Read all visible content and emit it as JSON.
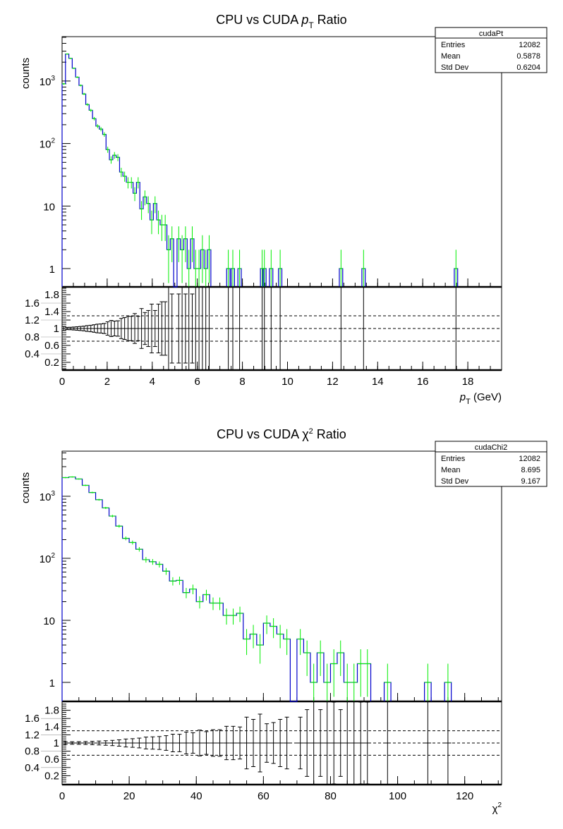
{
  "chart_data": [
    {
      "type": "bar",
      "title": {
        "prefix": "CPU vs CUDA",
        "symbol": "p",
        "sub": "T",
        "sup": "",
        "suffix": "Ratio"
      },
      "xlabel": {
        "symbol": "p",
        "sub": "T",
        "sup": "",
        "suffix": "(GeV)"
      },
      "ylabel": "counts",
      "y_scale": "log",
      "xlim": [
        0,
        19.5
      ],
      "ylim": [
        0.5,
        5000
      ],
      "x_ticks": [
        "0",
        "2",
        "4",
        "6",
        "8",
        "10",
        "12",
        "14",
        "16",
        "18"
      ],
      "y_ticks": [
        {
          "base": "1",
          "exp": ""
        },
        {
          "base": "10",
          "exp": ""
        },
        {
          "base": "10",
          "exp": "2"
        },
        {
          "base": "10",
          "exp": "3"
        }
      ],
      "bin_width": 0.15,
      "counts": [
        900,
        2700,
        2300,
        1600,
        1150,
        850,
        620,
        420,
        340,
        250,
        190,
        170,
        140,
        80,
        55,
        65,
        60,
        35,
        30,
        24,
        24,
        16,
        24,
        9,
        14,
        11,
        6,
        11,
        6,
        5,
        5,
        2,
        3,
        0,
        3,
        2,
        3,
        1,
        3,
        1,
        1,
        2,
        1,
        2
      ],
      "isolated_bins": [
        [
          7.3,
          1
        ],
        [
          7.5,
          1
        ],
        [
          7.8,
          1
        ],
        [
          8.8,
          1
        ],
        [
          8.9,
          1
        ],
        [
          9.2,
          1
        ],
        [
          9.6,
          1
        ],
        [
          12.3,
          1
        ],
        [
          13.3,
          1
        ],
        [
          17.4,
          1
        ]
      ],
      "stats": {
        "name": "cudaPt",
        "rows": [
          [
            "Entries",
            "12082"
          ],
          [
            "Mean",
            "0.5878"
          ],
          [
            "Std Dev",
            "0.6204"
          ]
        ]
      },
      "ratio": {
        "ylim": [
          0,
          2
        ],
        "y_ticks": [
          "0.2",
          "0.4",
          "0.6",
          "0.8",
          "1",
          "1.2",
          "1.4",
          "1.6",
          "1.8"
        ],
        "reference_lines": [
          0.7,
          1.0,
          1.3
        ]
      },
      "colors": {
        "histogram": "#0000cc",
        "errors": "#00ee00",
        "ratio": "#000000"
      },
      "grid": false
    },
    {
      "type": "bar",
      "title": {
        "prefix": "CPU vs CUDA",
        "symbol": "χ",
        "sub": "",
        "sup": "2",
        "suffix": "Ratio"
      },
      "xlabel": {
        "symbol": "χ",
        "sub": "",
        "sup": "2",
        "suffix": ""
      },
      "ylabel": "counts",
      "y_scale": "log",
      "xlim": [
        0,
        131
      ],
      "ylim": [
        0.5,
        4000
      ],
      "x_ticks": [
        "0",
        "20",
        "40",
        "60",
        "80",
        "100",
        "120"
      ],
      "y_ticks": [
        {
          "base": "1",
          "exp": ""
        },
        {
          "base": "10",
          "exp": ""
        },
        {
          "base": "10",
          "exp": "2"
        },
        {
          "base": "10",
          "exp": "3"
        }
      ],
      "bin_width": 2,
      "counts": [
        2000,
        2050,
        1900,
        1500,
        1150,
        880,
        650,
        480,
        330,
        210,
        180,
        140,
        95,
        88,
        80,
        62,
        43,
        44,
        28,
        32,
        20,
        26,
        19,
        19,
        12,
        12,
        13,
        5,
        6,
        4,
        9,
        8,
        6,
        5,
        0,
        5,
        3,
        1,
        3,
        1,
        2,
        3,
        1,
        1,
        2,
        2
      ],
      "isolated_bins": [
        [
          96,
          1
        ],
        [
          108,
          1
        ],
        [
          114,
          1
        ]
      ],
      "stats": {
        "name": "cudaChi2",
        "rows": [
          [
            "Entries",
            "12082"
          ],
          [
            "Mean",
            "8.695"
          ],
          [
            "Std Dev",
            "9.167"
          ]
        ]
      },
      "ratio": {
        "ylim": [
          0,
          2
        ],
        "y_ticks": [
          "0.2",
          "0.4",
          "0.6",
          "0.8",
          "1",
          "1.2",
          "1.4",
          "1.6",
          "1.8"
        ],
        "reference_lines": [
          0.7,
          1.0,
          1.3
        ]
      },
      "colors": {
        "histogram": "#0000cc",
        "errors": "#00ee00",
        "ratio": "#000000"
      },
      "grid": false
    }
  ]
}
